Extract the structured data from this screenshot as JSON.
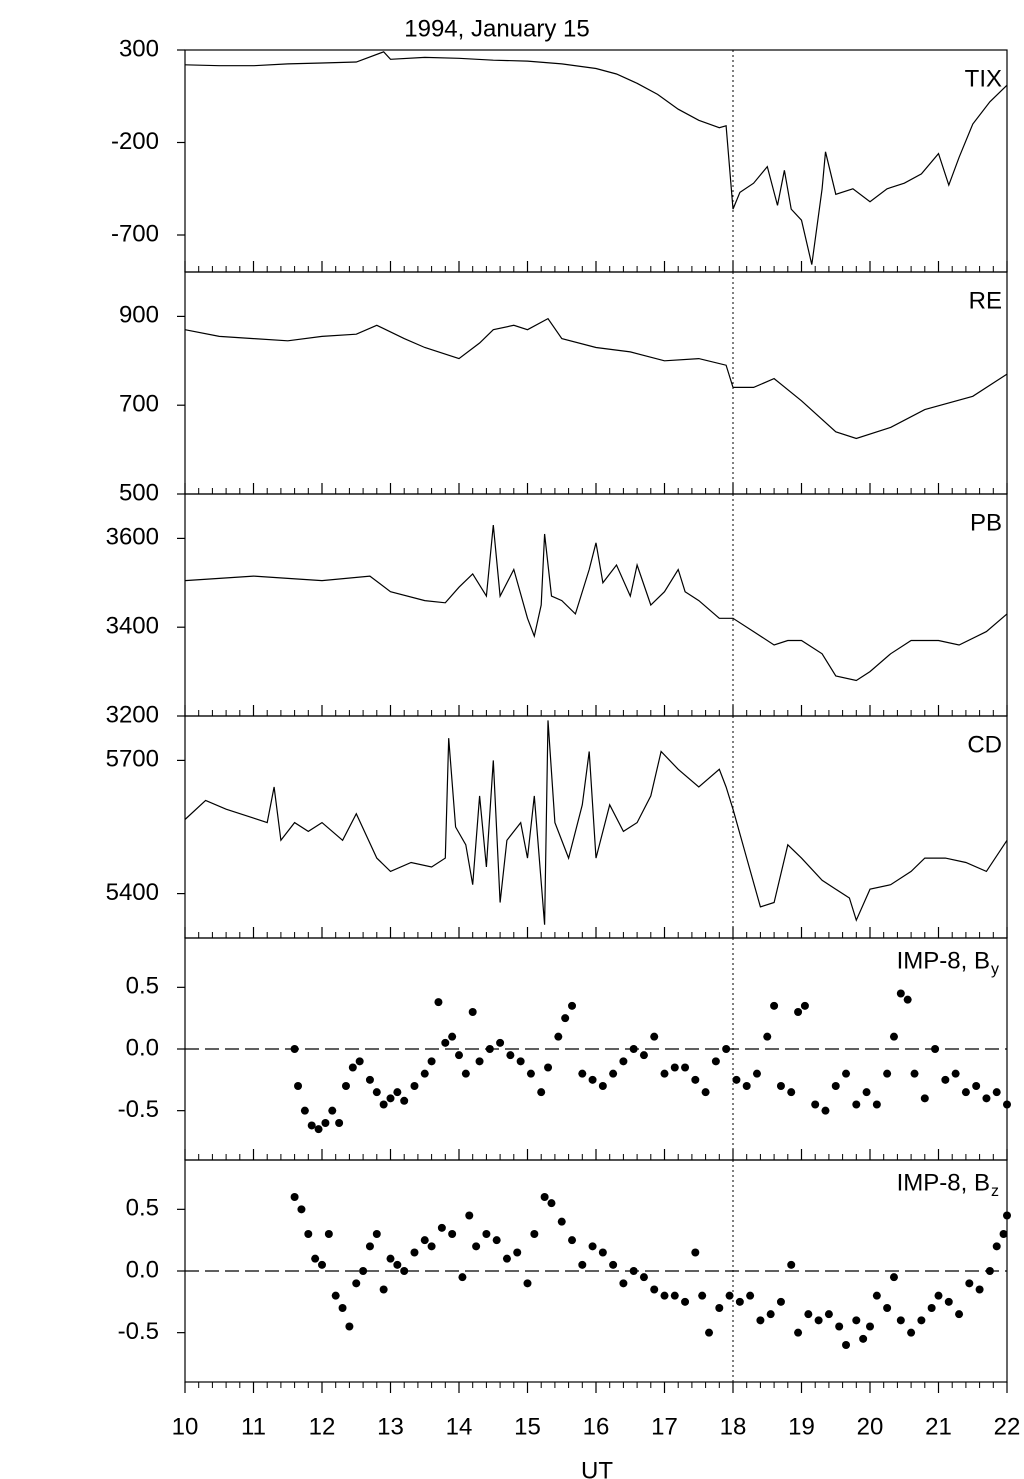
{
  "chart_data": [
    {
      "type": "line",
      "title": "1994, January 15",
      "label": "TIX",
      "color": "#000000",
      "x": [
        10,
        10.5,
        11,
        11.5,
        12,
        12.5,
        12.9,
        13,
        13.5,
        14,
        14.5,
        15,
        15.5,
        16,
        16.3,
        16.6,
        16.9,
        17.2,
        17.5,
        17.8,
        17.9,
        18.0,
        18.1,
        18.3,
        18.5,
        18.65,
        18.75,
        18.85,
        19.0,
        19.15,
        19.3,
        19.35,
        19.5,
        19.75,
        20.0,
        20.25,
        20.5,
        20.75,
        21.0,
        21.15,
        21.3,
        21.5,
        21.75,
        22
      ],
      "values": [
        220,
        215,
        215,
        225,
        230,
        235,
        290,
        250,
        260,
        255,
        245,
        240,
        225,
        200,
        170,
        120,
        60,
        -20,
        -80,
        -120,
        -110,
        -560,
        -470,
        -420,
        -330,
        -540,
        -350,
        -560,
        -620,
        -860,
        -450,
        -250,
        -480,
        -450,
        -520,
        -450,
        -420,
        -370,
        -260,
        -430,
        -280,
        -100,
        20,
        110
      ],
      "xlim": [
        10,
        22
      ],
      "xticks": [
        10,
        11,
        12,
        13,
        14,
        15,
        16,
        17,
        18,
        19,
        20,
        21,
        22
      ],
      "xminor": 5,
      "ylim": [
        -900,
        300
      ],
      "yticks": [
        300,
        -200,
        -700
      ],
      "marker_x": 18
    },
    {
      "type": "line",
      "label": "RE",
      "color": "#000000",
      "x": [
        10,
        10.5,
        11,
        11.5,
        12,
        12.5,
        12.8,
        13.2,
        13.5,
        14,
        14.3,
        14.5,
        14.8,
        15,
        15.3,
        15.5,
        16,
        16.5,
        17,
        17.5,
        17.9,
        18,
        18.3,
        18.6,
        19,
        19.5,
        19.8,
        20.3,
        20.8,
        21.5,
        22
      ],
      "values": [
        870,
        855,
        850,
        845,
        855,
        860,
        880,
        850,
        830,
        805,
        840,
        870,
        880,
        870,
        895,
        850,
        830,
        820,
        800,
        805,
        790,
        740,
        740,
        760,
        710,
        640,
        625,
        650,
        690,
        720,
        770
      ],
      "xlim": [
        10,
        22
      ],
      "xticks": [
        10,
        11,
        12,
        13,
        14,
        15,
        16,
        17,
        18,
        19,
        20,
        21,
        22
      ],
      "xminor": 5,
      "ylim": [
        500,
        1000
      ],
      "yticks": [
        900,
        700,
        500
      ],
      "marker_x": 18
    },
    {
      "type": "line",
      "label": "PB",
      "color": "#000000",
      "x": [
        10,
        10.5,
        11,
        11.5,
        12,
        12.7,
        13,
        13.5,
        13.8,
        14,
        14.2,
        14.4,
        14.5,
        14.6,
        14.8,
        15,
        15.1,
        15.2,
        15.25,
        15.35,
        15.5,
        15.7,
        15.9,
        16,
        16.1,
        16.3,
        16.5,
        16.6,
        16.8,
        17,
        17.2,
        17.3,
        17.5,
        17.8,
        18,
        18.3,
        18.6,
        18.8,
        19,
        19.3,
        19.5,
        19.8,
        20,
        20.3,
        20.6,
        21,
        21.3,
        21.7,
        22
      ],
      "values": [
        3505,
        3510,
        3515,
        3510,
        3505,
        3515,
        3480,
        3460,
        3455,
        3490,
        3520,
        3470,
        3630,
        3470,
        3530,
        3420,
        3380,
        3450,
        3610,
        3470,
        3460,
        3430,
        3530,
        3590,
        3500,
        3540,
        3470,
        3540,
        3450,
        3480,
        3530,
        3480,
        3460,
        3420,
        3420,
        3390,
        3360,
        3370,
        3370,
        3340,
        3290,
        3280,
        3300,
        3340,
        3370,
        3370,
        3360,
        3390,
        3430
      ],
      "xlim": [
        10,
        22
      ],
      "xticks": [
        10,
        11,
        12,
        13,
        14,
        15,
        16,
        17,
        18,
        19,
        20,
        21,
        22
      ],
      "xminor": 5,
      "ylim": [
        3200,
        3700
      ],
      "yticks": [
        3600,
        3400,
        3200
      ],
      "marker_x": 18
    },
    {
      "type": "line",
      "label": "CD",
      "color": "#000000",
      "x": [
        10,
        10.3,
        10.6,
        11,
        11.2,
        11.3,
        11.4,
        11.6,
        11.8,
        12,
        12.3,
        12.5,
        12.8,
        13,
        13.3,
        13.6,
        13.8,
        13.85,
        13.95,
        14.1,
        14.2,
        14.3,
        14.4,
        14.5,
        14.6,
        14.7,
        14.9,
        15,
        15.1,
        15.25,
        15.3,
        15.4,
        15.6,
        15.8,
        15.9,
        16,
        16.2,
        16.4,
        16.6,
        16.8,
        16.95,
        17.2,
        17.5,
        17.8,
        17.9,
        18,
        18.2,
        18.4,
        18.6,
        18.8,
        19,
        19.3,
        19.5,
        19.7,
        19.8,
        20,
        20.3,
        20.6,
        20.8,
        21.1,
        21.4,
        21.7,
        22
      ],
      "values": [
        5567,
        5610,
        5590,
        5570,
        5560,
        5640,
        5520,
        5560,
        5540,
        5560,
        5520,
        5580,
        5480,
        5450,
        5470,
        5460,
        5480,
        5750,
        5550,
        5510,
        5420,
        5620,
        5460,
        5700,
        5380,
        5520,
        5560,
        5480,
        5620,
        5330,
        5790,
        5560,
        5480,
        5600,
        5720,
        5480,
        5600,
        5540,
        5560,
        5620,
        5720,
        5680,
        5640,
        5680,
        5640,
        5590,
        5480,
        5370,
        5380,
        5510,
        5480,
        5430,
        5410,
        5390,
        5340,
        5410,
        5420,
        5450,
        5480,
        5480,
        5470,
        5450,
        5520
      ],
      "xlim": [
        10,
        22
      ],
      "xticks": [
        10,
        11,
        12,
        13,
        14,
        15,
        16,
        17,
        18,
        19,
        20,
        21,
        22
      ],
      "xminor": 5,
      "ylim": [
        5300,
        5800
      ],
      "yticks": [
        5700,
        5400
      ],
      "marker_x": 18
    },
    {
      "type": "scatter",
      "label": "IMP-8, B",
      "label_sub": "y",
      "color": "#000000",
      "x": [
        11.6,
        11.65,
        11.75,
        11.85,
        11.95,
        12.05,
        12.15,
        12.25,
        12.35,
        12.45,
        12.55,
        12.7,
        12.8,
        12.9,
        13.0,
        13.1,
        13.2,
        13.35,
        13.5,
        13.6,
        13.7,
        13.8,
        13.9,
        14.0,
        14.1,
        14.2,
        14.3,
        14.45,
        14.6,
        14.75,
        14.9,
        15.05,
        15.2,
        15.3,
        15.45,
        15.55,
        15.65,
        15.8,
        15.95,
        16.1,
        16.25,
        16.4,
        16.55,
        16.7,
        16.85,
        17.0,
        17.15,
        17.3,
        17.45,
        17.6,
        17.75,
        17.9,
        18.05,
        18.2,
        18.35,
        18.5,
        18.6,
        18.7,
        18.85,
        18.95,
        19.05,
        19.2,
        19.35,
        19.5,
        19.65,
        19.8,
        19.95,
        20.1,
        20.25,
        20.35,
        20.45,
        20.55,
        20.65,
        20.8,
        20.95,
        21.1,
        21.25,
        21.4,
        21.55,
        21.7,
        21.85,
        22.0
      ],
      "values": [
        0.0,
        -0.3,
        -0.5,
        -0.62,
        -0.65,
        -0.6,
        -0.5,
        -0.6,
        -0.3,
        -0.15,
        -0.1,
        -0.25,
        -0.35,
        -0.45,
        -0.4,
        -0.35,
        -0.42,
        -0.3,
        -0.2,
        -0.1,
        0.38,
        0.05,
        0.1,
        -0.05,
        -0.2,
        0.3,
        -0.1,
        0.0,
        0.05,
        -0.05,
        -0.1,
        -0.2,
        -0.35,
        -0.15,
        0.1,
        0.25,
        0.35,
        -0.2,
        -0.25,
        -0.3,
        -0.2,
        -0.1,
        0.0,
        -0.05,
        0.1,
        -0.2,
        -0.15,
        -0.15,
        -0.25,
        -0.35,
        -0.1,
        0.0,
        -0.25,
        -0.3,
        -0.2,
        0.1,
        0.35,
        -0.3,
        -0.35,
        0.3,
        0.35,
        -0.45,
        -0.5,
        -0.3,
        -0.2,
        -0.45,
        -0.35,
        -0.45,
        -0.2,
        0.1,
        0.45,
        0.4,
        -0.2,
        -0.4,
        0.0,
        -0.25,
        -0.2,
        -0.35,
        -0.3,
        -0.4,
        -0.35,
        -0.45
      ],
      "xlim": [
        10,
        22
      ],
      "xticks": [
        10,
        11,
        12,
        13,
        14,
        15,
        16,
        17,
        18,
        19,
        20,
        21,
        22
      ],
      "xminor": 5,
      "ylim": [
        -0.9,
        0.9
      ],
      "yticks": [
        0.5,
        {
          "value": 0,
          "label": "0.0"
        },
        -0.5
      ],
      "hline": 0,
      "marker_x": 18
    },
    {
      "type": "scatter",
      "label": "IMP-8, B",
      "label_sub": "z",
      "color": "#000000",
      "x_label": "UT",
      "x": [
        11.6,
        11.7,
        11.8,
        11.9,
        12.0,
        12.1,
        12.2,
        12.3,
        12.4,
        12.5,
        12.6,
        12.7,
        12.8,
        12.9,
        13.0,
        13.1,
        13.2,
        13.35,
        13.5,
        13.6,
        13.75,
        13.9,
        14.05,
        14.15,
        14.25,
        14.4,
        14.55,
        14.7,
        14.85,
        15.0,
        15.1,
        15.25,
        15.35,
        15.5,
        15.65,
        15.8,
        15.95,
        16.1,
        16.25,
        16.4,
        16.55,
        16.7,
        16.85,
        17.0,
        17.15,
        17.3,
        17.45,
        17.55,
        17.65,
        17.8,
        17.95,
        18.1,
        18.25,
        18.4,
        18.55,
        18.7,
        18.85,
        18.95,
        19.1,
        19.25,
        19.4,
        19.55,
        19.65,
        19.8,
        19.9,
        20.0,
        20.1,
        20.25,
        20.35,
        20.45,
        20.6,
        20.75,
        20.9,
        21.0,
        21.15,
        21.3,
        21.45,
        21.6,
        21.75,
        21.85,
        21.95,
        22.0
      ],
      "values": [
        0.6,
        0.5,
        0.3,
        0.1,
        0.05,
        0.3,
        -0.2,
        -0.3,
        -0.45,
        -0.1,
        0.0,
        0.2,
        0.3,
        -0.15,
        0.1,
        0.05,
        0.0,
        0.15,
        0.25,
        0.2,
        0.35,
        0.3,
        -0.05,
        0.45,
        0.2,
        0.3,
        0.25,
        0.1,
        0.15,
        -0.1,
        0.3,
        0.6,
        0.55,
        0.4,
        0.25,
        0.05,
        0.2,
        0.15,
        0.05,
        -0.1,
        0.0,
        -0.05,
        -0.15,
        -0.2,
        -0.2,
        -0.25,
        0.15,
        -0.2,
        -0.5,
        -0.3,
        -0.2,
        -0.25,
        -0.2,
        -0.4,
        -0.35,
        -0.25,
        0.05,
        -0.5,
        -0.35,
        -0.4,
        -0.35,
        -0.45,
        -0.6,
        -0.4,
        -0.55,
        -0.45,
        -0.2,
        -0.3,
        -0.05,
        -0.4,
        -0.5,
        -0.4,
        -0.3,
        -0.2,
        -0.25,
        -0.35,
        -0.1,
        -0.15,
        0.0,
        0.2,
        0.3,
        0.45
      ],
      "xlim": [
        10,
        22
      ],
      "xticks": [
        10,
        11,
        12,
        13,
        14,
        15,
        16,
        17,
        18,
        19,
        20,
        21,
        22
      ],
      "xminor": 5,
      "ylim": [
        -0.9,
        0.9
      ],
      "yticks": [
        0.5,
        {
          "value": 0,
          "label": "0.0"
        },
        -0.5
      ],
      "hline": 0,
      "marker_x": 18
    }
  ]
}
